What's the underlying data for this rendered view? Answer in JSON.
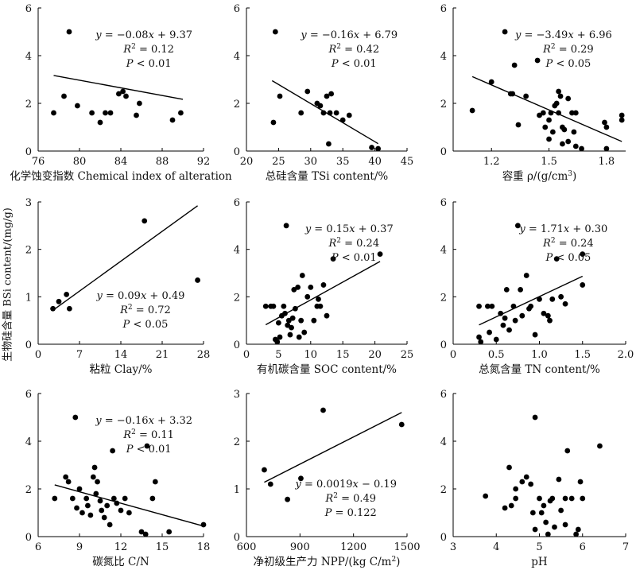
{
  "figure": {
    "shared_ylabel": "生物硅含量 BSi content/(mg/g)"
  },
  "chart_data": [
    {
      "type": "scatter",
      "xlabel": "化学蚀变指数 Chemical index of alteration",
      "xlim": [
        76,
        92
      ],
      "xticks": [
        76,
        80,
        84,
        88,
        92
      ],
      "ylim": [
        0,
        6
      ],
      "yticks": [
        0,
        2,
        4,
        6
      ],
      "equation": "y = −0.08x + 9.37",
      "r2": "R² = 0.12",
      "p": "P < 0.01",
      "ann_pos": "top-right",
      "trend": {
        "slope": -0.08,
        "intercept": 9.37,
        "x_range": [
          77.5,
          90
        ]
      },
      "points": [
        [
          77.5,
          1.6
        ],
        [
          78.5,
          2.3
        ],
        [
          79.0,
          5.0
        ],
        [
          79.8,
          1.9
        ],
        [
          81.2,
          1.6
        ],
        [
          82.0,
          1.2
        ],
        [
          82.5,
          1.6
        ],
        [
          83.0,
          1.6
        ],
        [
          83.8,
          2.4
        ],
        [
          84.2,
          2.5
        ],
        [
          84.5,
          2.3
        ],
        [
          85.8,
          2.0
        ],
        [
          85.5,
          1.5
        ],
        [
          89.0,
          1.3
        ],
        [
          89.8,
          1.6
        ]
      ]
    },
    {
      "type": "scatter",
      "xlabel": "总硅含量 TSi content/%",
      "xlim": [
        20,
        45
      ],
      "xticks": [
        20,
        25,
        30,
        35,
        40,
        45
      ],
      "ylim": [
        0,
        6
      ],
      "yticks": [
        0,
        2,
        4,
        6
      ],
      "equation": "y = −0.16x + 6.79",
      "r2": "R² = 0.42",
      "p": "P < 0.01",
      "ann_pos": "top-right",
      "trend": {
        "slope": -0.16,
        "intercept": 6.79,
        "x_range": [
          24,
          40.5
        ]
      },
      "points": [
        [
          24.2,
          1.2
        ],
        [
          24.5,
          5.0
        ],
        [
          25.2,
          2.3
        ],
        [
          28.5,
          1.6
        ],
        [
          29.5,
          2.5
        ],
        [
          31.0,
          2.0
        ],
        [
          31.5,
          1.9
        ],
        [
          32.0,
          1.6
        ],
        [
          32.5,
          2.3
        ],
        [
          33.0,
          1.6
        ],
        [
          33.2,
          2.4
        ],
        [
          34.0,
          1.6
        ],
        [
          35.0,
          1.3
        ],
        [
          36.0,
          1.5
        ],
        [
          32.8,
          0.3
        ],
        [
          39.5,
          0.15
        ],
        [
          40.5,
          0.1
        ]
      ]
    },
    {
      "type": "scatter",
      "xlabel": "容重 ρ/(g/cm³)",
      "xlim": [
        1.0,
        1.9
      ],
      "xticks": [
        1.2,
        1.5,
        1.8
      ],
      "xtick_format": "fixed1",
      "ylim": [
        0,
        6
      ],
      "yticks": [
        0,
        2,
        4,
        6
      ],
      "equation": "y = −3.49x + 6.96",
      "r2": "R² = 0.29",
      "p": "P < 0.05",
      "ann_pos": "top-right",
      "trend": {
        "slope": -3.49,
        "intercept": 6.96,
        "x_range": [
          1.1,
          1.88
        ]
      },
      "points": [
        [
          1.1,
          1.7
        ],
        [
          1.2,
          2.9
        ],
        [
          1.27,
          5.0
        ],
        [
          1.3,
          2.4
        ],
        [
          1.31,
          2.4
        ],
        [
          1.32,
          3.6
        ],
        [
          1.34,
          1.1
        ],
        [
          1.38,
          2.3
        ],
        [
          1.44,
          3.8
        ],
        [
          1.45,
          1.5
        ],
        [
          1.47,
          1.6
        ],
        [
          1.48,
          1.0
        ],
        [
          1.5,
          1.3
        ],
        [
          1.5,
          0.5
        ],
        [
          1.51,
          1.6
        ],
        [
          1.52,
          0.8
        ],
        [
          1.53,
          1.9
        ],
        [
          1.54,
          2.0
        ],
        [
          1.55,
          1.6
        ],
        [
          1.55,
          2.5
        ],
        [
          1.56,
          2.3
        ],
        [
          1.57,
          0.3
        ],
        [
          1.57,
          1.0
        ],
        [
          1.58,
          0.9
        ],
        [
          1.6,
          2.2
        ],
        [
          1.6,
          0.4
        ],
        [
          1.62,
          1.6
        ],
        [
          1.63,
          0.8
        ],
        [
          1.64,
          0.2
        ],
        [
          1.64,
          1.6
        ],
        [
          1.67,
          0.1
        ],
        [
          1.79,
          1.2
        ],
        [
          1.8,
          1.0
        ],
        [
          1.8,
          0.1
        ],
        [
          1.88,
          1.5
        ],
        [
          1.88,
          1.3
        ]
      ]
    },
    {
      "type": "scatter",
      "xlabel": "粘粒 Clay/%",
      "xlim": [
        0,
        28
      ],
      "xticks": [
        0,
        7,
        14,
        21,
        28
      ],
      "ylim": [
        0,
        3
      ],
      "yticks": [
        0,
        1,
        2,
        3
      ],
      "equation": "y = 0.09x + 0.49",
      "r2": "R² = 0.72",
      "p": "P < 0.05",
      "ann_pos": "bottom-center",
      "trend": {
        "slope": 0.09,
        "intercept": 0.49,
        "x_range": [
          2.5,
          27
        ]
      },
      "points": [
        [
          2.5,
          0.75
        ],
        [
          3.5,
          0.9
        ],
        [
          4.8,
          1.05
        ],
        [
          5.3,
          0.75
        ],
        [
          18,
          2.6
        ],
        [
          27,
          1.35
        ]
      ]
    },
    {
      "type": "scatter",
      "xlabel": "有机碳含量 SOC content/%",
      "xlim": [
        0,
        25
      ],
      "xticks": [
        0,
        5,
        10,
        15,
        20,
        25
      ],
      "ylim": [
        0,
        6
      ],
      "yticks": [
        0,
        2,
        4,
        6
      ],
      "equation": "y = 0.15x + 0.37",
      "r2": "R² = 0.24",
      "p": "P < 0.01",
      "ann_pos": "top-right",
      "trend": {
        "slope": 0.15,
        "intercept": 0.37,
        "x_range": [
          3,
          20.8
        ]
      },
      "points": [
        [
          3,
          1.6
        ],
        [
          3.8,
          1.6
        ],
        [
          4.2,
          1.6
        ],
        [
          4.5,
          0.2
        ],
        [
          4.8,
          0.1
        ],
        [
          5,
          0.9
        ],
        [
          5.2,
          0.3
        ],
        [
          5.5,
          1.2
        ],
        [
          5.8,
          1.6
        ],
        [
          6,
          1.3
        ],
        [
          6.2,
          5.0
        ],
        [
          6.4,
          0.8
        ],
        [
          6.6,
          1.0
        ],
        [
          6.8,
          0.4
        ],
        [
          7,
          0.7
        ],
        [
          7.2,
          1.1
        ],
        [
          7.4,
          2.3
        ],
        [
          7.6,
          1.5
        ],
        [
          8,
          2.4
        ],
        [
          8.2,
          0.3
        ],
        [
          8.5,
          1.0
        ],
        [
          8.7,
          2.9
        ],
        [
          9,
          0.5
        ],
        [
          9.5,
          2.0
        ],
        [
          10,
          2.4
        ],
        [
          10.5,
          1.0
        ],
        [
          11,
          1.6
        ],
        [
          11.2,
          1.9
        ],
        [
          11.5,
          1.6
        ],
        [
          12,
          2.5
        ],
        [
          12.5,
          1.2
        ],
        [
          13.5,
          3.6
        ],
        [
          20.8,
          3.8
        ]
      ]
    },
    {
      "type": "scatter",
      "xlabel": "总氮含量 TN content/%",
      "xlim": [
        0,
        2.0
      ],
      "xticks": [
        0,
        0.5,
        1.0,
        1.5,
        2.0
      ],
      "xtick_format": "tn",
      "ylim": [
        0,
        6
      ],
      "yticks": [
        0,
        2,
        4,
        6
      ],
      "equation": "y = 1.71x + 0.30",
      "r2": "R² = 0.24",
      "p": "P < 0.05",
      "ann_pos": "top-right",
      "trend": {
        "slope": 1.71,
        "intercept": 0.3,
        "x_range": [
          0.3,
          1.5
        ]
      },
      "points": [
        [
          0.3,
          1.6
        ],
        [
          0.3,
          0.3
        ],
        [
          0.32,
          0.1
        ],
        [
          0.4,
          1.6
        ],
        [
          0.42,
          0.5
        ],
        [
          0.45,
          1.6
        ],
        [
          0.5,
          0.2
        ],
        [
          0.55,
          1.3
        ],
        [
          0.58,
          0.8
        ],
        [
          0.6,
          1.1
        ],
        [
          0.62,
          2.3
        ],
        [
          0.65,
          0.6
        ],
        [
          0.7,
          1.6
        ],
        [
          0.72,
          1.0
        ],
        [
          0.75,
          5.0
        ],
        [
          0.78,
          2.3
        ],
        [
          0.8,
          1.2
        ],
        [
          0.85,
          2.9
        ],
        [
          0.88,
          1.5
        ],
        [
          0.9,
          1.6
        ],
        [
          0.95,
          0.4
        ],
        [
          1.0,
          1.9
        ],
        [
          1.05,
          1.3
        ],
        [
          1.1,
          1.2
        ],
        [
          1.12,
          1.0
        ],
        [
          1.15,
          1.9
        ],
        [
          1.2,
          3.6
        ],
        [
          1.25,
          2.0
        ],
        [
          1.3,
          1.7
        ],
        [
          1.5,
          3.8
        ],
        [
          1.5,
          2.5
        ]
      ]
    },
    {
      "type": "scatter",
      "xlabel": "碳氮比 C/N",
      "xlim": [
        6,
        18
      ],
      "xticks": [
        6,
        9,
        12,
        15,
        18
      ],
      "ylim": [
        0,
        6
      ],
      "yticks": [
        0,
        2,
        4,
        6
      ],
      "equation": "y = −0.16x + 3.32",
      "r2": "R² = 0.11",
      "p": "P < 0.01",
      "ann_pos": "top-right",
      "trend": {
        "slope": -0.16,
        "intercept": 3.32,
        "x_range": [
          7.2,
          18
        ]
      },
      "points": [
        [
          7.2,
          1.6
        ],
        [
          8,
          2.5
        ],
        [
          8.2,
          2.3
        ],
        [
          8.5,
          1.6
        ],
        [
          8.7,
          5.0
        ],
        [
          8.8,
          1.2
        ],
        [
          9,
          2.0
        ],
        [
          9.2,
          1.0
        ],
        [
          9.5,
          1.6
        ],
        [
          9.6,
          1.3
        ],
        [
          9.8,
          0.9
        ],
        [
          10,
          2.5
        ],
        [
          10.1,
          2.9
        ],
        [
          10.2,
          1.8
        ],
        [
          10.3,
          2.3
        ],
        [
          10.5,
          1.5
        ],
        [
          10.6,
          1.1
        ],
        [
          10.8,
          0.8
        ],
        [
          11,
          1.3
        ],
        [
          11.2,
          0.5
        ],
        [
          11.4,
          3.6
        ],
        [
          11.5,
          1.6
        ],
        [
          11.7,
          1.4
        ],
        [
          12,
          1.1
        ],
        [
          12.3,
          1.6
        ],
        [
          12.6,
          1.0
        ],
        [
          13.5,
          0.2
        ],
        [
          13.8,
          0.1
        ],
        [
          13.9,
          3.8
        ],
        [
          14.3,
          1.6
        ],
        [
          14.5,
          2.3
        ],
        [
          15.5,
          0.2
        ],
        [
          18,
          0.5
        ]
      ]
    },
    {
      "type": "scatter",
      "xlabel": "净初级生产力 NPP/(kg C/m²)",
      "xlim": [
        600,
        1500
      ],
      "xticks": [
        600,
        900,
        1200,
        1500
      ],
      "ylim": [
        0,
        3
      ],
      "yticks": [
        0,
        1,
        2,
        3
      ],
      "equation": "y = 0.0019x − 0.19",
      "r2": "R² = 0.49",
      "p": "P = 0.122",
      "ann_pos": "bottom-right",
      "trend": {
        "slope": 0.0019,
        "intercept": -0.19,
        "x_range": [
          700,
          1470
        ]
      },
      "points": [
        [
          700,
          1.4
        ],
        [
          735,
          1.1
        ],
        [
          830,
          0.78
        ],
        [
          905,
          1.22
        ],
        [
          1030,
          2.65
        ],
        [
          1470,
          2.35
        ]
      ]
    },
    {
      "type": "scatter",
      "xlabel": "pH",
      "xlim": [
        3,
        7
      ],
      "xticks": [
        3,
        4,
        5,
        6,
        7
      ],
      "ylim": [
        0,
        6
      ],
      "yticks": [
        0,
        2,
        4,
        6
      ],
      "equation": "",
      "r2": "",
      "p": "",
      "ann_pos": "none",
      "trend": null,
      "points": [
        [
          3.75,
          1.7
        ],
        [
          4.2,
          1.2
        ],
        [
          4.3,
          2.9
        ],
        [
          4.35,
          1.3
        ],
        [
          4.45,
          2.0
        ],
        [
          4.45,
          1.6
        ],
        [
          4.6,
          2.3
        ],
        [
          4.7,
          2.5
        ],
        [
          4.8,
          2.2
        ],
        [
          4.85,
          1.0
        ],
        [
          4.9,
          5.0
        ],
        [
          4.9,
          0.3
        ],
        [
          5.0,
          1.6
        ],
        [
          5.05,
          1.0
        ],
        [
          5.1,
          1.3
        ],
        [
          5.15,
          0.6
        ],
        [
          5.2,
          0.1
        ],
        [
          5.25,
          1.5
        ],
        [
          5.3,
          1.6
        ],
        [
          5.35,
          0.4
        ],
        [
          5.45,
          2.4
        ],
        [
          5.5,
          1.1
        ],
        [
          5.6,
          0.5
        ],
        [
          5.6,
          1.6
        ],
        [
          5.65,
          3.6
        ],
        [
          5.75,
          1.6
        ],
        [
          5.85,
          0.1
        ],
        [
          5.9,
          0.3
        ],
        [
          5.95,
          2.3
        ],
        [
          6.0,
          1.6
        ],
        [
          6.4,
          3.8
        ]
      ]
    }
  ]
}
